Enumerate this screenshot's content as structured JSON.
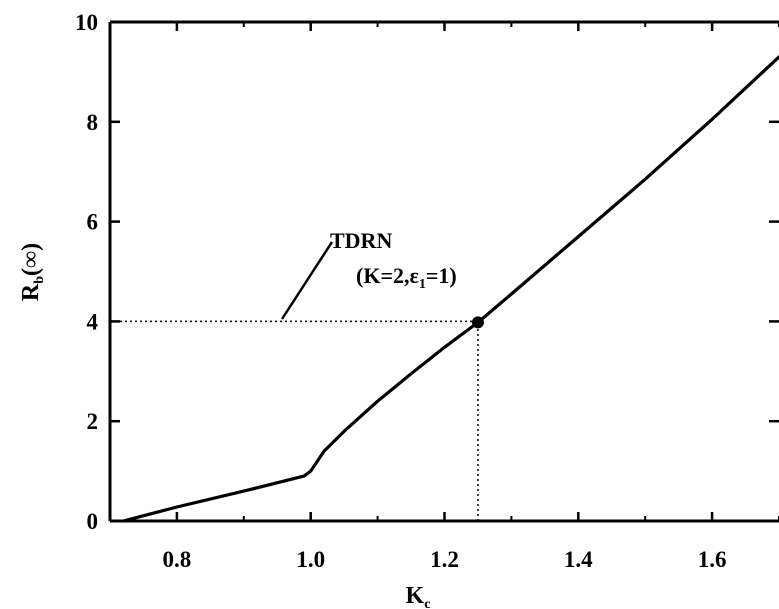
{
  "chart_data": {
    "type": "line",
    "xlim": [
      0.7,
      1.7
    ],
    "ylim": [
      0,
      10
    ],
    "x_ticks": [
      0.8,
      1.0,
      1.2,
      1.4,
      1.6
    ],
    "x_tick_labels": [
      "0.8",
      "1.0",
      "1.2",
      "1.4",
      "1.6"
    ],
    "y_ticks": [
      0,
      2,
      4,
      6,
      8,
      10
    ],
    "y_tick_labels": [
      "0",
      "2",
      "4",
      "6",
      "8",
      "10"
    ],
    "xlabel": "K",
    "xlabel_sub": "c",
    "ylabel": "R",
    "ylabel_sub": "b",
    "ylabel_suffix": "(∞)",
    "grid": false,
    "series": [
      {
        "x": [
          0.72,
          0.8,
          0.9,
          0.99,
          1.0,
          1.02,
          1.05,
          1.1,
          1.15,
          1.2,
          1.25,
          1.3,
          1.4,
          1.5,
          1.6,
          1.7
        ],
        "y": [
          0.0,
          0.28,
          0.6,
          0.9,
          1.0,
          1.4,
          1.8,
          2.4,
          2.95,
          3.48,
          3.98,
          4.55,
          5.7,
          6.85,
          8.05,
          9.3
        ]
      }
    ],
    "marker_point": {
      "x": 1.25,
      "y": 3.98
    },
    "reference_lines": [
      {
        "from": [
          0.7,
          4.0
        ],
        "to": [
          1.25,
          4.0
        ]
      },
      {
        "from": [
          1.25,
          0.0
        ],
        "to": [
          1.25,
          4.0
        ]
      }
    ],
    "annotation": {
      "line1": "TDRN",
      "line2_a": "(K=2,ε",
      "line2_sub": "1",
      "line2_b": "=1)"
    }
  }
}
